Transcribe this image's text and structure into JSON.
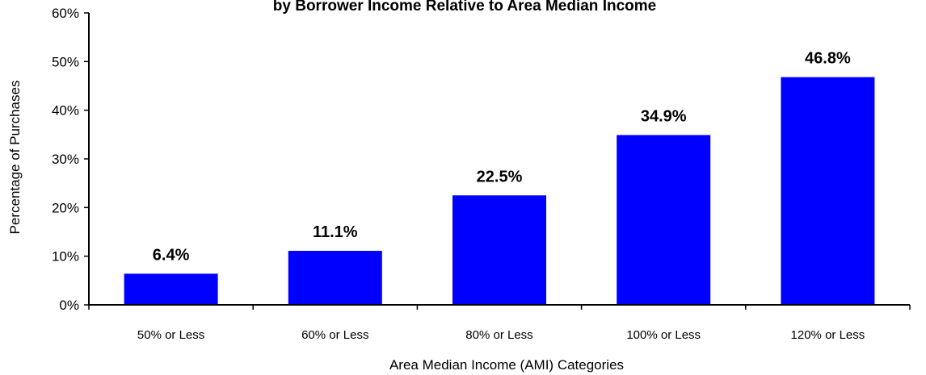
{
  "chart_data": {
    "type": "bar",
    "title": "by Borrower Income Relative to Area Median Income",
    "xlabel": "Area Median Income (AMI) Categories",
    "ylabel": "Percentage of Purchases",
    "categories": [
      "50% or Less",
      "60% or Less",
      "80% or Less",
      "100% or Less",
      "120% or Less"
    ],
    "values": [
      6.4,
      11.1,
      22.5,
      34.9,
      46.8
    ],
    "value_labels": [
      "6.4%",
      "11.1%",
      "22.5%",
      "34.9%",
      "46.8%"
    ],
    "ylim": [
      0,
      60
    ],
    "yticks": [
      0,
      10,
      20,
      30,
      40,
      50,
      60
    ],
    "ytick_labels": [
      "0%",
      "10%",
      "20%",
      "30%",
      "40%",
      "50%",
      "60%"
    ],
    "grid": false,
    "legend": "none",
    "bar_color": "#0000FF"
  }
}
